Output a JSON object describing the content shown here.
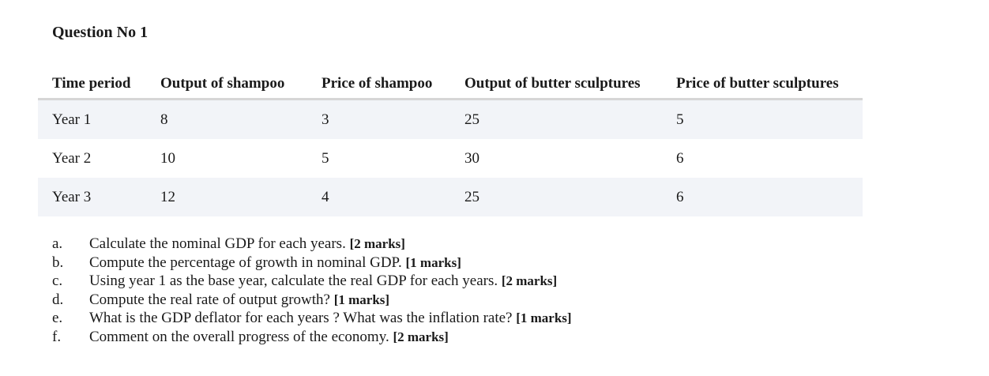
{
  "question_title": "Question No 1",
  "table": {
    "headers": [
      "Time period",
      "Output of  shampoo",
      "Price of shampoo",
      "Output of butter sculptures",
      "Price of butter sculptures"
    ],
    "rows": [
      [
        "Year  1",
        "8",
        "3",
        "25",
        "5"
      ],
      [
        "Year  2",
        "10",
        "5",
        "30",
        "6"
      ],
      [
        "Year  3",
        "12",
        "4",
        "25",
        "6"
      ]
    ]
  },
  "questions": [
    {
      "marker": "a.",
      "text": "Calculate the nominal GDP for each years. ",
      "marks": "[2 marks]"
    },
    {
      "marker": "b.",
      "text": "Compute the percentage of growth in nominal GDP. ",
      "marks": "[1 marks]"
    },
    {
      "marker": "c.",
      "text": "Using year 1 as the base year, calculate the real GDP for each years. ",
      "marks": "[2 marks]"
    },
    {
      "marker": "d.",
      "text": "Compute the real rate of output growth?  ",
      "marks": "[1 marks]"
    },
    {
      "marker": "e.",
      "text": "What is the GDP deflator for each years ? What was the inflation rate? ",
      "marks": "[1 marks]"
    },
    {
      "marker": "f.",
      "text": "Comment on the overall progress of the economy. ",
      "marks": "[2 marks]"
    }
  ]
}
